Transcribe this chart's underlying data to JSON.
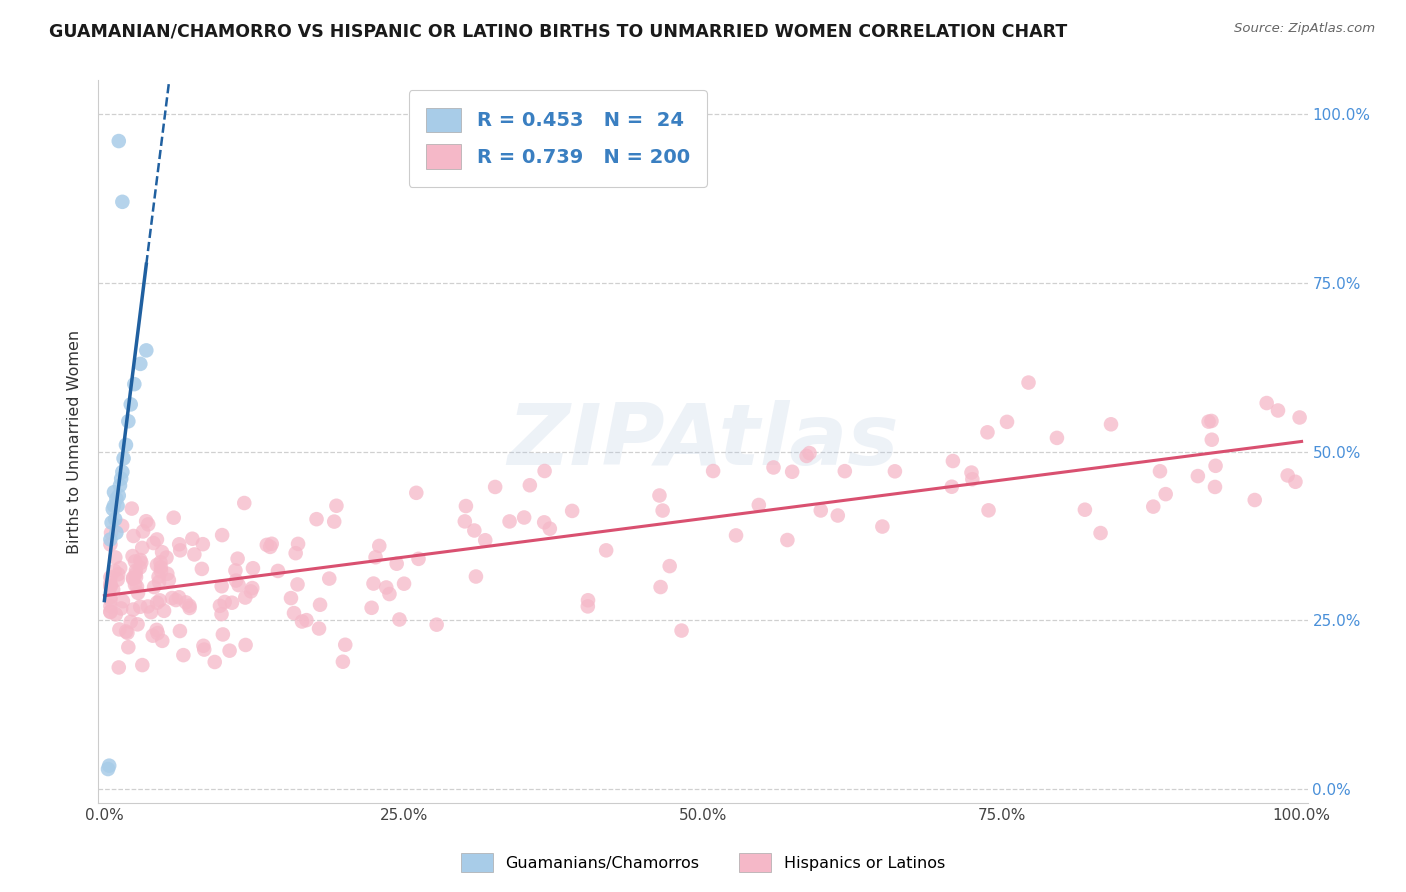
{
  "title": "GUAMANIAN/CHAMORRO VS HISPANIC OR LATINO BIRTHS TO UNMARRIED WOMEN CORRELATION CHART",
  "source": "Source: ZipAtlas.com",
  "ylabel": "Births to Unmarried Women",
  "blue_R": 0.453,
  "blue_N": 24,
  "pink_R": 0.739,
  "pink_N": 200,
  "blue_color": "#a8cce8",
  "blue_line_color": "#2060a0",
  "pink_color": "#f5b8c8",
  "pink_line_color": "#d95070",
  "watermark_text": "ZIPAtlas",
  "legend_label_blue": "Guamanians/Chamorros",
  "legend_label_pink": "Hispanics or Latinos",
  "blue_x": [
    0.003,
    0.004,
    0.005,
    0.006,
    0.007,
    0.008,
    0.008,
    0.009,
    0.01,
    0.01,
    0.011,
    0.012,
    0.013,
    0.014,
    0.015,
    0.016,
    0.018,
    0.02,
    0.022,
    0.025,
    0.03,
    0.035,
    0.012,
    0.015
  ],
  "blue_y": [
    0.03,
    0.035,
    0.37,
    0.395,
    0.415,
    0.42,
    0.44,
    0.4,
    0.38,
    0.43,
    0.42,
    0.435,
    0.45,
    0.46,
    0.47,
    0.49,
    0.51,
    0.545,
    0.57,
    0.6,
    0.63,
    0.65,
    0.96,
    0.87
  ],
  "pink_intercept": 0.285,
  "pink_slope": 0.235,
  "pink_noise": 0.058,
  "pink_seed": 77
}
